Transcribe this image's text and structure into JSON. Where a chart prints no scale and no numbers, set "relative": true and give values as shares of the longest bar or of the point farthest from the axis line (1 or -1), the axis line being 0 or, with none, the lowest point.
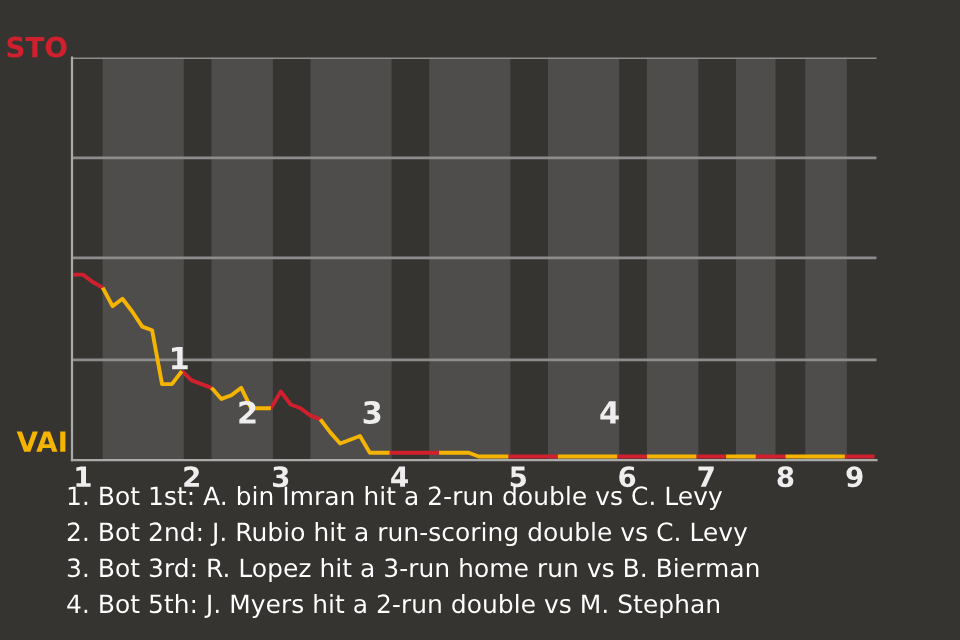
{
  "chart_data": {
    "type": "line",
    "relative": true,
    "categories": [
      null,
      "1",
      null,
      null,
      null,
      null,
      null,
      null,
      null,
      null,
      null,
      null,
      "2",
      null,
      null,
      null,
      null,
      null,
      null,
      null,
      null,
      "3",
      null,
      null,
      null,
      null,
      null,
      null,
      null,
      null,
      null,
      null,
      null,
      "4",
      null,
      null,
      null,
      null,
      null,
      null,
      null,
      null,
      null,
      null,
      null,
      "5",
      null,
      null,
      null,
      null,
      null,
      null,
      null,
      null,
      null,
      null,
      "6",
      null,
      null,
      null,
      null,
      null,
      null,
      null,
      "7",
      null,
      null,
      null,
      null,
      null,
      null,
      null,
      "8",
      null,
      null,
      null,
      null,
      null,
      null,
      "9",
      null,
      null
    ],
    "series": [
      {
        "color": "#d0202e",
        "values": [
          1,
          1,
          0.96,
          0.93,
          null,
          null,
          null,
          null,
          null,
          null,
          null,
          0.48,
          0.43,
          0.41,
          0.39,
          null,
          null,
          null,
          null,
          null,
          0.28,
          0.37,
          0.3,
          0.28,
          0.24,
          0.22,
          null,
          null,
          null,
          null,
          null,
          null,
          0.04,
          0.04,
          0.04,
          0.04,
          0.04,
          0.04,
          null,
          null,
          null,
          null,
          null,
          null,
          0.02,
          0.02,
          0.02,
          0.02,
          0.02,
          0.02,
          null,
          null,
          null,
          null,
          null,
          0.02,
          0.02,
          0.02,
          0.02,
          null,
          null,
          null,
          null,
          0.02,
          0.02,
          0.02,
          0.02,
          null,
          null,
          0.02,
          0.02,
          0.02,
          0.02,
          null,
          null,
          null,
          null,
          null,
          0.02,
          0.02,
          0.02,
          0.02
        ]
      },
      {
        "color": "#f5b400",
        "values": [
          null,
          null,
          null,
          0.93,
          0.83,
          0.87,
          0.8,
          0.72,
          0.7,
          0.41,
          0.41,
          0.48,
          null,
          null,
          0.39,
          0.33,
          0.35,
          0.39,
          0.28,
          0.28,
          0.28,
          null,
          null,
          null,
          null,
          0.22,
          0.15,
          0.09,
          0.11,
          0.13,
          0.04,
          0.04,
          0.04,
          null,
          null,
          null,
          null,
          0.04,
          0.04,
          0.04,
          0.04,
          0.02,
          0.02,
          0.02,
          0.02,
          null,
          null,
          null,
          null,
          0.02,
          0.02,
          0.02,
          0.02,
          0.02,
          0.02,
          0.02,
          null,
          null,
          0.02,
          0.02,
          0.02,
          0.02,
          0.02,
          0.02,
          null,
          null,
          0.02,
          0.02,
          0.02,
          0.02,
          null,
          null,
          0.02,
          0.02,
          0.02,
          0.02,
          0.02,
          0.02,
          0.02,
          null,
          null,
          null
        ]
      }
    ],
    "ref_lines": [
      {
        "axis": "y",
        "value": 0.54,
        "color": "#8c8c8c"
      },
      {
        "axis": "y",
        "value": 1.09,
        "color": "#8c8c8c"
      },
      {
        "axis": "y",
        "value": 1.63,
        "color": "#8c8c8c"
      },
      {
        "axis": "y",
        "value": 2.17,
        "color": "#8c8c8c"
      }
    ],
    "annotations": [
      "STO",
      "VAI",
      "1",
      "2",
      "3",
      "4",
      "1. Bot 1st: A. bin Imran hit a 2-run double vs C. Levy",
      "2. Bot 2nd: J. Rubio hit a run-scoring double vs C. Levy",
      "3. Bot 3rd: R. Lopez hit a 3-run home run vs B. Bierman",
      "4. Bot 5th: J. Myers hit a 2-run double vs M. Stephan"
    ]
  }
}
